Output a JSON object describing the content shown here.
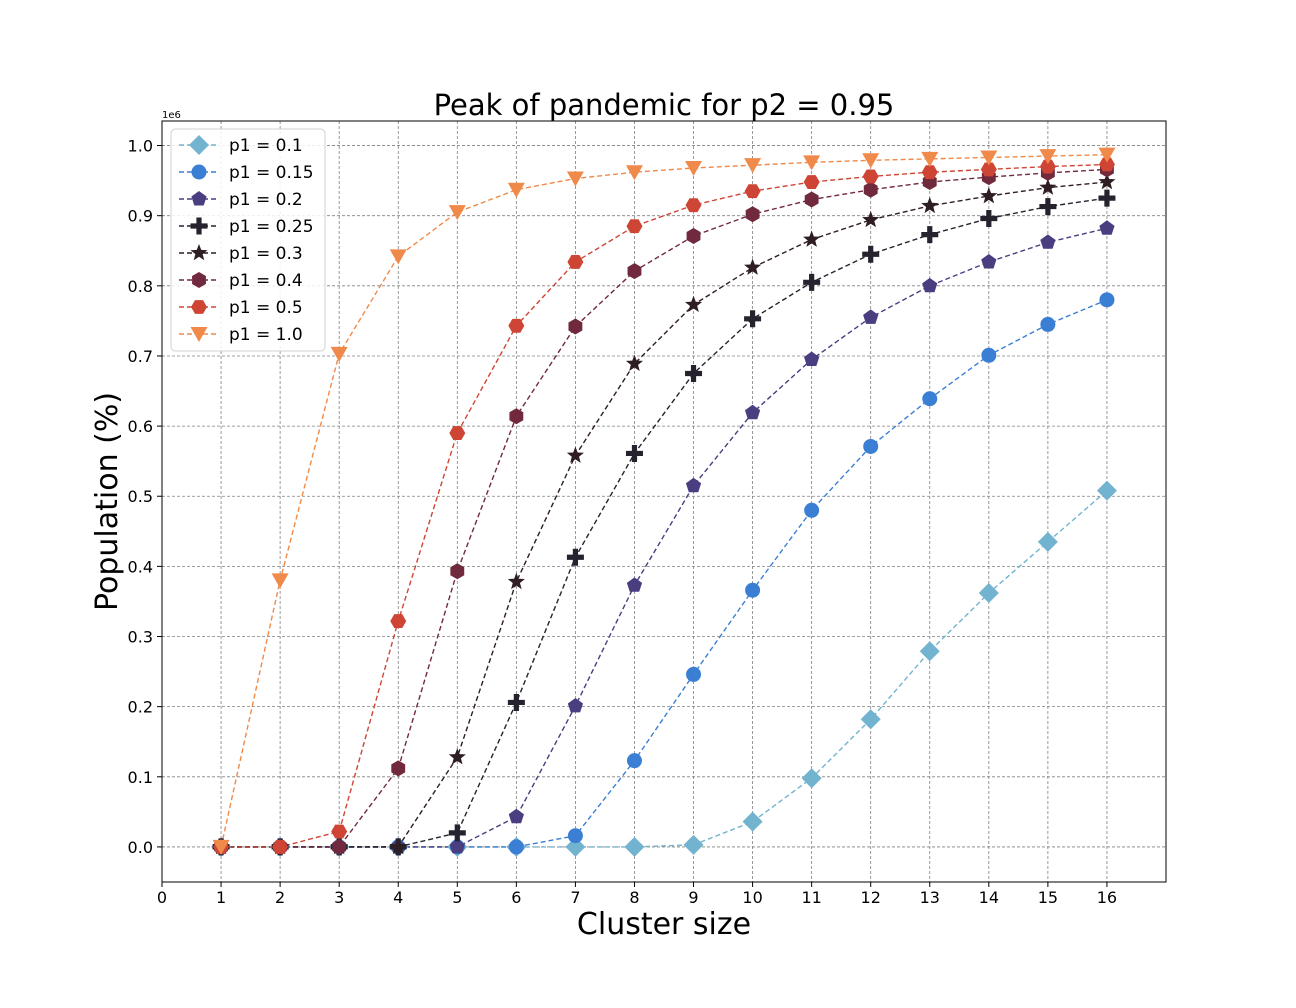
{
  "chart_data": {
    "type": "line",
    "title": "Peak of pandemic for p2 = 0.95",
    "xlabel": "Cluster size",
    "ylabel": "Population (%)",
    "y_offset_label": "1e6",
    "xlim": [
      0,
      17
    ],
    "ylim": [
      -0.05,
      1.035
    ],
    "x_ticks": [
      0,
      1,
      2,
      3,
      4,
      5,
      6,
      7,
      8,
      9,
      10,
      11,
      12,
      13,
      14,
      15,
      16
    ],
    "y_ticks": [
      0.0,
      0.1,
      0.2,
      0.3,
      0.4,
      0.5,
      0.6,
      0.7,
      0.8,
      0.9,
      1.0
    ],
    "y_tick_labels": [
      "0.0",
      "0.1",
      "0.2",
      "0.3",
      "0.4",
      "0.5",
      "0.6",
      "0.7",
      "0.8",
      "0.9",
      "1.0"
    ],
    "grid": true,
    "legend_position": "top-left",
    "x": [
      1,
      2,
      3,
      4,
      5,
      6,
      7,
      8,
      9,
      10,
      11,
      12,
      13,
      14,
      15,
      16
    ],
    "series": [
      {
        "name": "p1 = 0.1",
        "color": "#72b3cf",
        "marker": "diamond",
        "values": [
          0.0,
          0.0,
          0.0,
          0.0,
          0.0,
          0.0,
          0.0,
          0.0,
          0.003,
          0.036,
          0.098,
          0.182,
          0.279,
          0.362,
          0.435,
          0.508
        ]
      },
      {
        "name": "p1 = 0.15",
        "color": "#3a7fd4",
        "marker": "circle",
        "values": [
          0.0,
          0.0,
          0.0,
          0.0,
          0.0,
          0.0,
          0.016,
          0.123,
          0.246,
          0.366,
          0.48,
          0.571,
          0.639,
          0.701,
          0.745,
          0.78
        ]
      },
      {
        "name": "p1 = 0.2",
        "color": "#4a3d80",
        "marker": "pentagon",
        "values": [
          0.0,
          0.0,
          0.0,
          0.0,
          0.0,
          0.043,
          0.201,
          0.373,
          0.515,
          0.619,
          0.695,
          0.755,
          0.8,
          0.834,
          0.862,
          0.882
        ]
      },
      {
        "name": "p1 = 0.25",
        "color": "#26222e",
        "marker": "plus",
        "values": [
          0.0,
          0.0,
          0.0,
          0.0,
          0.02,
          0.206,
          0.413,
          0.561,
          0.675,
          0.753,
          0.805,
          0.845,
          0.873,
          0.896,
          0.913,
          0.925
        ]
      },
      {
        "name": "p1 = 0.3",
        "color": "#2f1d24",
        "marker": "star",
        "values": [
          0.0,
          0.0,
          0.0,
          0.0,
          0.128,
          0.378,
          0.558,
          0.689,
          0.773,
          0.826,
          0.866,
          0.894,
          0.914,
          0.928,
          0.94,
          0.948
        ]
      },
      {
        "name": "p1 = 0.4",
        "color": "#712a3d",
        "marker": "hexagon",
        "values": [
          0.0,
          0.0,
          0.0,
          0.112,
          0.393,
          0.614,
          0.742,
          0.821,
          0.871,
          0.902,
          0.923,
          0.937,
          0.948,
          0.955,
          0.961,
          0.966
        ]
      },
      {
        "name": "p1 = 0.5",
        "color": "#cf4535",
        "marker": "hexagon2",
        "values": [
          0.0,
          0.0,
          0.022,
          0.322,
          0.59,
          0.743,
          0.834,
          0.885,
          0.915,
          0.935,
          0.948,
          0.956,
          0.962,
          0.966,
          0.97,
          0.973
        ]
      },
      {
        "name": "p1 = 1.0",
        "color": "#ef8a4a",
        "marker": "triangle-down",
        "values": [
          0.0,
          0.38,
          0.703,
          0.842,
          0.905,
          0.937,
          0.953,
          0.962,
          0.968,
          0.972,
          0.976,
          0.979,
          0.981,
          0.983,
          0.985,
          0.987
        ]
      }
    ]
  }
}
